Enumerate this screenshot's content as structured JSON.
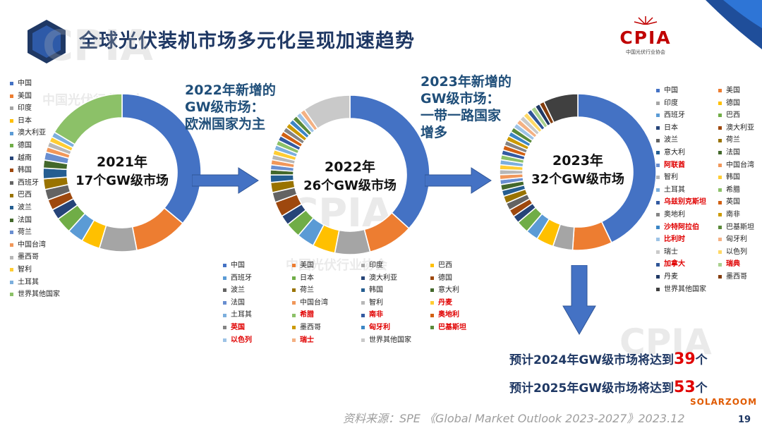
{
  "header": {
    "title": "全球光伏装机市场多元化呈现加速趋势",
    "logo_text": "CPIA",
    "logo_sub": "中国光伏行业协会"
  },
  "watermarks": {
    "main": "CPIA",
    "sub": "中国光伏行业协会"
  },
  "colors": {
    "accent_blue": "#4472c4",
    "title_blue": "#1f3864",
    "highlight_red": "#e00000",
    "arrow_blue": "#4472c4"
  },
  "annotations": {
    "a2022": [
      "2022年新增的",
      "GW级市场：",
      "欧洲国家为主"
    ],
    "a2023": [
      "2023年新增的",
      "GW级市场：",
      "一带一路国家",
      "增多"
    ]
  },
  "predictions": {
    "p2024_prefix": "预计2024年GW级市场将达到",
    "p2024_num": "39",
    "p2024_suffix": "个",
    "p2025_prefix": "预计2025年GW级市场将达到",
    "p2025_num": "53",
    "p2025_suffix": "个"
  },
  "footer": {
    "source": "资料来源：SPE 《Global Market Outlook 2023-2027》2023.12",
    "page": "19",
    "watermark_brand": "SOLARZOOM"
  },
  "chart_data": [
    {
      "type": "pie",
      "variant": "donut",
      "center_label": [
        "2021年",
        "17个GW级市场"
      ],
      "slices": [
        {
          "name": "中国",
          "value": 33.0,
          "color": "#4472c4",
          "highlight": false
        },
        {
          "name": "美国",
          "value": 10.0,
          "color": "#ed7d31",
          "highlight": false
        },
        {
          "name": "印度",
          "value": 7.0,
          "color": "#a5a5a5",
          "highlight": false
        },
        {
          "name": "日本",
          "value": 3.5,
          "color": "#ffc000",
          "highlight": false
        },
        {
          "name": "澳大利亚",
          "value": 3.0,
          "color": "#5b9bd5",
          "highlight": false
        },
        {
          "name": "德国",
          "value": 3.0,
          "color": "#70ad47",
          "highlight": false
        },
        {
          "name": "越南",
          "value": 2.0,
          "color": "#264478",
          "highlight": false
        },
        {
          "name": "韩国",
          "value": 2.0,
          "color": "#9e480e",
          "highlight": false
        },
        {
          "name": "西班牙",
          "value": 2.0,
          "color": "#636363",
          "highlight": false
        },
        {
          "name": "巴西",
          "value": 2.0,
          "color": "#997300",
          "highlight": false
        },
        {
          "name": "波兰",
          "value": 2.0,
          "color": "#255e91",
          "highlight": false
        },
        {
          "name": "法国",
          "value": 1.5,
          "color": "#43682b",
          "highlight": false
        },
        {
          "name": "荷兰",
          "value": 1.5,
          "color": "#698ed0",
          "highlight": false
        },
        {
          "name": "中国台湾",
          "value": 1.0,
          "color": "#f1975a",
          "highlight": false
        },
        {
          "name": "墨西哥",
          "value": 1.0,
          "color": "#b7b7b7",
          "highlight": false
        },
        {
          "name": "智利",
          "value": 1.0,
          "color": "#ffcd33",
          "highlight": false
        },
        {
          "name": "土耳其",
          "value": 1.0,
          "color": "#7cafdd",
          "highlight": false
        },
        {
          "name": "世界其他国家",
          "value": 15.0,
          "color": "#8cc168",
          "highlight": false
        }
      ]
    },
    {
      "type": "pie",
      "variant": "donut",
      "center_label": [
        "2022年",
        "26个GW级市场"
      ],
      "slices": [
        {
          "name": "中国",
          "value": 36.0,
          "color": "#4472c4",
          "highlight": false
        },
        {
          "name": "美国",
          "value": 9.0,
          "color": "#ed7d31",
          "highlight": false
        },
        {
          "name": "印度",
          "value": 7.0,
          "color": "#a5a5a5",
          "highlight": false
        },
        {
          "name": "巴西",
          "value": 4.5,
          "color": "#ffc000",
          "highlight": false
        },
        {
          "name": "西班牙",
          "value": 3.5,
          "color": "#5b9bd5",
          "highlight": false
        },
        {
          "name": "日本",
          "value": 3.0,
          "color": "#70ad47",
          "highlight": false
        },
        {
          "name": "澳大利亚",
          "value": 2.0,
          "color": "#264478",
          "highlight": false
        },
        {
          "name": "德国",
          "value": 3.0,
          "color": "#9e480e",
          "highlight": false
        },
        {
          "name": "波兰",
          "value": 2.0,
          "color": "#636363",
          "highlight": false
        },
        {
          "name": "荷兰",
          "value": 2.0,
          "color": "#997300",
          "highlight": false
        },
        {
          "name": "韩国",
          "value": 1.5,
          "color": "#255e91",
          "highlight": false
        },
        {
          "name": "意大利",
          "value": 1.0,
          "color": "#43682b",
          "highlight": false
        },
        {
          "name": "法国",
          "value": 1.0,
          "color": "#698ed0",
          "highlight": false
        },
        {
          "name": "中国台湾",
          "value": 1.0,
          "color": "#f1975a",
          "highlight": false
        },
        {
          "name": "智利",
          "value": 1.0,
          "color": "#b7b7b7",
          "highlight": false
        },
        {
          "name": "丹麦",
          "value": 1.0,
          "color": "#ffcd33",
          "highlight": true
        },
        {
          "name": "土耳其",
          "value": 1.0,
          "color": "#7cafdd",
          "highlight": false
        },
        {
          "name": "希腊",
          "value": 1.0,
          "color": "#8cc168",
          "highlight": true
        },
        {
          "name": "南非",
          "value": 1.0,
          "color": "#335aa1",
          "highlight": true
        },
        {
          "name": "奥地利",
          "value": 1.0,
          "color": "#d26012",
          "highlight": true
        },
        {
          "name": "英国",
          "value": 1.0,
          "color": "#848484",
          "highlight": true
        },
        {
          "name": "墨西哥",
          "value": 1.0,
          "color": "#cc9a00",
          "highlight": false
        },
        {
          "name": "匈牙利",
          "value": 1.0,
          "color": "#3c86c5",
          "highlight": true
        },
        {
          "name": "巴基斯坦",
          "value": 1.0,
          "color": "#5a8a3a",
          "highlight": true
        },
        {
          "name": "以色列",
          "value": 1.0,
          "color": "#9dc3e6",
          "highlight": true
        },
        {
          "name": "瑞士",
          "value": 1.0,
          "color": "#f4b183",
          "highlight": true
        },
        {
          "name": "世界其他国家",
          "value": 9.5,
          "color": "#c9c9c9",
          "highlight": false
        }
      ]
    },
    {
      "type": "pie",
      "variant": "donut",
      "center_label": [
        "2023年",
        "32个GW级市场"
      ],
      "slices": [
        {
          "name": "中国",
          "value": 42.0,
          "color": "#4472c4",
          "highlight": false
        },
        {
          "name": "美国",
          "value": 8.0,
          "color": "#ed7d31",
          "highlight": false
        },
        {
          "name": "印度",
          "value": 4.0,
          "color": "#a5a5a5",
          "highlight": false
        },
        {
          "name": "德国",
          "value": 3.5,
          "color": "#ffc000",
          "highlight": false
        },
        {
          "name": "西班牙",
          "value": 2.5,
          "color": "#5b9bd5",
          "highlight": false
        },
        {
          "name": "巴西",
          "value": 2.5,
          "color": "#70ad47",
          "highlight": false
        },
        {
          "name": "日本",
          "value": 1.5,
          "color": "#264478",
          "highlight": false
        },
        {
          "name": "澳大利亚",
          "value": 1.5,
          "color": "#9e480e",
          "highlight": false
        },
        {
          "name": "波兰",
          "value": 1.5,
          "color": "#636363",
          "highlight": false
        },
        {
          "name": "荷兰",
          "value": 1.5,
          "color": "#997300",
          "highlight": false
        },
        {
          "name": "意大利",
          "value": 1.2,
          "color": "#255e91",
          "highlight": false
        },
        {
          "name": "法国",
          "value": 1.2,
          "color": "#43682b",
          "highlight": false
        },
        {
          "name": "阿联酋",
          "value": 1.0,
          "color": "#698ed0",
          "highlight": true
        },
        {
          "name": "中国台湾",
          "value": 1.0,
          "color": "#f1975a",
          "highlight": false
        },
        {
          "name": "智利",
          "value": 1.0,
          "color": "#b7b7b7",
          "highlight": false
        },
        {
          "name": "韩国",
          "value": 1.0,
          "color": "#ffcd33",
          "highlight": false
        },
        {
          "name": "土耳其",
          "value": 1.0,
          "color": "#7cafdd",
          "highlight": false
        },
        {
          "name": "希腊",
          "value": 1.0,
          "color": "#8cc168",
          "highlight": false
        },
        {
          "name": "乌兹别克斯坦",
          "value": 1.0,
          "color": "#335aa1",
          "highlight": true
        },
        {
          "name": "英国",
          "value": 1.0,
          "color": "#d26012",
          "highlight": false
        },
        {
          "name": "奥地利",
          "value": 1.0,
          "color": "#848484",
          "highlight": false
        },
        {
          "name": "南非",
          "value": 1.0,
          "color": "#cc9a00",
          "highlight": false
        },
        {
          "name": "沙特阿拉伯",
          "value": 1.0,
          "color": "#3c86c5",
          "highlight": true
        },
        {
          "name": "巴基斯坦",
          "value": 1.0,
          "color": "#5a8a3a",
          "highlight": false
        },
        {
          "name": "比利时",
          "value": 1.0,
          "color": "#9dc3e6",
          "highlight": true
        },
        {
          "name": "匈牙利",
          "value": 1.0,
          "color": "#f4b183",
          "highlight": false
        },
        {
          "name": "瑞士",
          "value": 1.0,
          "color": "#c9c9c9",
          "highlight": false
        },
        {
          "name": "以色列",
          "value": 1.0,
          "color": "#ffd966",
          "highlight": false
        },
        {
          "name": "加拿大",
          "value": 1.0,
          "color": "#2f5597",
          "highlight": true
        },
        {
          "name": "瑞典",
          "value": 1.0,
          "color": "#a9d18e",
          "highlight": true
        },
        {
          "name": "丹麦",
          "value": 1.0,
          "color": "#1f3864",
          "highlight": false
        },
        {
          "name": "墨西哥",
          "value": 1.0,
          "color": "#843c0c",
          "highlight": false
        },
        {
          "name": "世界其他国家",
          "value": 7.0,
          "color": "#404040",
          "highlight": false
        }
      ]
    }
  ]
}
